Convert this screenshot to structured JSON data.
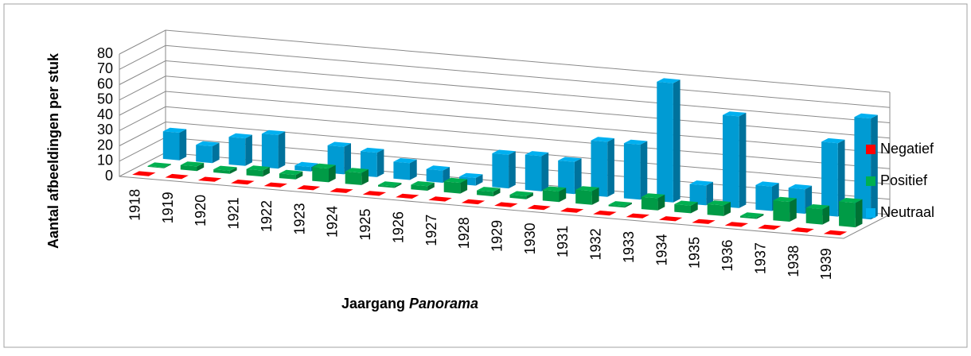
{
  "chart_data": {
    "type": "bar3d",
    "y_label": "Aantal afbeeldingen per stuk",
    "x_label": "Jaargang",
    "x_label_italic": "Panorama",
    "categories": [
      "1918",
      "1919",
      "1920",
      "1921",
      "1922",
      "1923",
      "1924",
      "1925",
      "1926",
      "1927",
      "1928",
      "1929",
      "1930",
      "1931",
      "1932",
      "1933",
      "1934",
      "1935",
      "1936",
      "1937",
      "1938",
      "1939"
    ],
    "series": [
      {
        "name": "Negatief",
        "color": "#ff0000",
        "values": [
          0,
          0,
          0,
          0,
          0,
          0,
          0,
          0,
          0,
          0,
          0,
          0,
          0,
          0,
          0,
          0,
          0,
          0,
          0,
          0,
          0,
          0
        ]
      },
      {
        "name": "Positief",
        "color": "#00b050",
        "values": [
          0.5,
          3,
          2,
          4,
          3,
          9,
          8,
          1,
          3,
          7,
          3,
          2,
          7,
          9,
          1,
          8,
          5,
          7,
          1,
          13,
          10,
          16
        ]
      },
      {
        "name": "Neutraal",
        "color": "#00b0f0",
        "values": [
          18,
          11,
          18,
          22,
          3,
          18,
          16,
          11,
          8,
          5,
          22,
          23,
          21,
          36,
          36,
          78,
          13,
          60,
          16,
          16,
          48,
          66
        ]
      }
    ],
    "ylim": [
      0,
      80
    ],
    "yticks": [
      0,
      10,
      20,
      30,
      40,
      50,
      60,
      70,
      80
    ],
    "grid": true,
    "legend": "right"
  }
}
